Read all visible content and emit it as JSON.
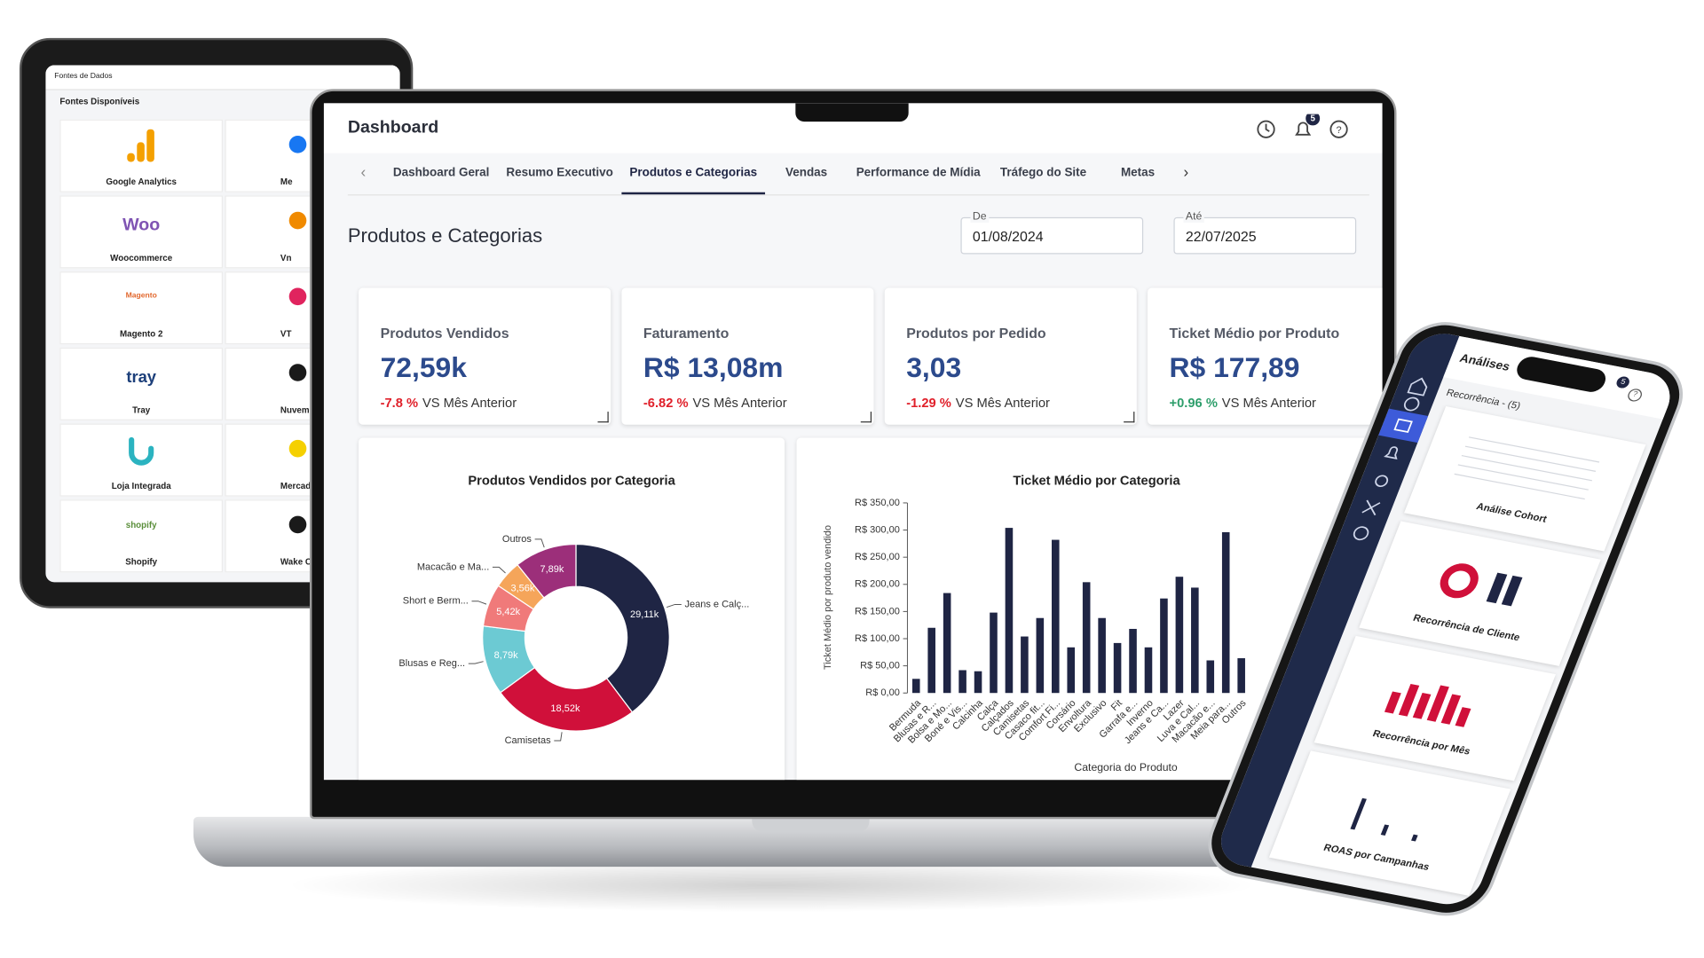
{
  "tablet": {
    "header": "Fontes de Dados",
    "section": "Fontes Disponíveis",
    "sources": [
      {
        "name": "Google Analytics"
      },
      {
        "name": "Woocommerce",
        "logo": "Woo"
      },
      {
        "name": "Magento 2",
        "logo": "Magento"
      },
      {
        "name": "Tray",
        "logo": "tray"
      },
      {
        "name": "Loja Integrada"
      },
      {
        "name": "Shopify",
        "logo": "shopify"
      }
    ],
    "sources_right": [
      "Me",
      "Vn",
      "VT",
      "Nuvem",
      "Mercad",
      "Wake Co"
    ]
  },
  "laptop": {
    "title": "Dashboard",
    "notifications": 5,
    "tabs": [
      {
        "label": "Dashboard Geral"
      },
      {
        "label": "Resumo Executivo"
      },
      {
        "label": "Produtos e Categorias",
        "active": true
      },
      {
        "label": "Vendas"
      },
      {
        "label": "Performance de Mídia"
      },
      {
        "label": "Tráfego do Site"
      },
      {
        "label": "Metas"
      }
    ],
    "page_title": "Produtos e Categorias",
    "date_from": {
      "label": "De",
      "value": "01/08/2024"
    },
    "date_to": {
      "label": "Até",
      "value": "22/07/2025"
    },
    "kpis": [
      {
        "label": "Produtos Vendidos",
        "value": "72,59k",
        "change": "-7.8 %",
        "comparison": "VS Mês Anterior"
      },
      {
        "label": "Faturamento",
        "value": "R$ 13,08m",
        "change": "-6.82 %",
        "comparison": "VS Mês Anterior"
      },
      {
        "label": "Produtos por Pedido",
        "value": "3,03",
        "change": "-1.29 %",
        "comparison": "VS Mês Anterior"
      },
      {
        "label": "Ticket Médio por Produto",
        "value": "R$ 177,89",
        "change": "+0.96 %",
        "comparison": "VS Mês Anterior"
      }
    ]
  },
  "chart_data": [
    {
      "type": "donut",
      "title": "Produtos Vendidos por Categoria",
      "categories": [
        "Jeans e Calç...",
        "Camisetas",
        "Blusas e Reg...",
        "Short e Berm...",
        "Macacão e Ma...",
        "Outros"
      ],
      "values": [
        29.11,
        18.52,
        8.79,
        5.42,
        3.56,
        7.89
      ],
      "value_labels": [
        "29,11k",
        "18,52k",
        "8,79k",
        "5,42k",
        "3,56k",
        "7,89k"
      ],
      "colors": [
        "#1f2544",
        "#d0103a",
        "#6ccad3",
        "#f07a7a",
        "#f5a55a",
        "#9c2f7a"
      ]
    },
    {
      "type": "bar",
      "title": "Ticket Médio por Categoria",
      "x_label": "Categoria do Produto",
      "y_label": "Ticket Médio por produto vendido",
      "categories": [
        "Bermuda",
        "Blusas e R...",
        "Bolsa e Mo...",
        "Boné e Vis...",
        "Calcinha",
        "Calça",
        "Calçados",
        "Camisetas",
        "Casaco fit...",
        "Comfort Fi...",
        "Corsário",
        "Envoltura",
        "Exclusivo",
        "Fit",
        "Garrafa e...",
        "Inverno",
        "Jeans e Ca...",
        "Lazer",
        "Luva e Cal...",
        "Macacão e...",
        "Meia para...",
        "Outros"
      ],
      "values": [
        26,
        120,
        184,
        42,
        40,
        148,
        304,
        104,
        138,
        282,
        84,
        204,
        138,
        92,
        118,
        84,
        174,
        214,
        194,
        60,
        296,
        64
      ],
      "color": "#1f2544",
      "ylim": [
        0,
        350
      ],
      "yticks": [
        {
          "value": 0,
          "label": "R$ 0,00"
        },
        {
          "value": 50,
          "label": "R$ 50,00"
        },
        {
          "value": 100,
          "label": "R$ 100,00"
        },
        {
          "value": 150,
          "label": "R$ 150,00"
        },
        {
          "value": 200,
          "label": "R$ 200,00"
        },
        {
          "value": 250,
          "label": "R$ 250,00"
        },
        {
          "value": 300,
          "label": "R$ 300,00"
        },
        {
          "value": 350,
          "label": "R$ 350,00"
        }
      ],
      "grid": false
    }
  ],
  "phone": {
    "title": "Análises",
    "section": "Recorrência - (5)",
    "notifications": 5,
    "cards": [
      "Análise Cohort",
      "Recorrência de Cliente",
      "Recorrência por Mês",
      "ROAS por Campanhas"
    ]
  }
}
